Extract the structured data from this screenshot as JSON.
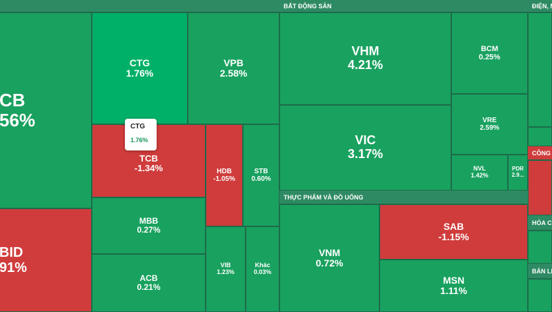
{
  "sectors": {
    "ngan_hang": "",
    "bat_dong_san": "BẤT ĐỘNG SẢN",
    "dien": "ĐIỆN, N",
    "thuc_pham": "THỰC PHẨM VÀ ĐỒ UỐNG",
    "cong": "CÔNG",
    "hoa_chat": "HÓA CH",
    "ban_le": "BÁN LẺ"
  },
  "tiles": {
    "vcb": {
      "sym": "CB",
      "pct": "56%"
    },
    "bid": {
      "sym": "BID",
      "pct": "91%"
    },
    "ctg": {
      "sym": "CTG",
      "pct": "1.76%"
    },
    "vpb": {
      "sym": "VPB",
      "pct": "2.58%"
    },
    "tcb": {
      "sym": "TCB",
      "pct": "-1.34%"
    },
    "hdb": {
      "sym": "HDB",
      "pct": "-1.05%"
    },
    "stb": {
      "sym": "STB",
      "pct": "0.60%"
    },
    "mbb": {
      "sym": "MBB",
      "pct": "0.27%"
    },
    "acb": {
      "sym": "ACB",
      "pct": "0.21%"
    },
    "vib": {
      "sym": "VIB",
      "pct": "1.23%"
    },
    "khac": {
      "sym": "Khác",
      "pct": "0.03%"
    },
    "vhm": {
      "sym": "VHM",
      "pct": "4.21%"
    },
    "bcm": {
      "sym": "BCM",
      "pct": "0.25%"
    },
    "vic": {
      "sym": "VIC",
      "pct": "3.17%"
    },
    "vre": {
      "sym": "VRE",
      "pct": "2.59%"
    },
    "nvl": {
      "sym": "NVL",
      "pct": "1.42%"
    },
    "pdr": {
      "sym": "PDR",
      "pct": "2.9..."
    },
    "vnm": {
      "sym": "VNM",
      "pct": "0.72%"
    },
    "sab": {
      "sym": "SAB",
      "pct": "-1.15%"
    },
    "msn": {
      "sym": "MSN",
      "pct": "1.11%"
    }
  },
  "tooltip": {
    "sym": "CTG",
    "pct": "1.76%"
  },
  "colors": {
    "up": "#19a15f",
    "up_bright": "#00b068",
    "down": "#d03c3c",
    "header": "#2d8a62"
  }
}
